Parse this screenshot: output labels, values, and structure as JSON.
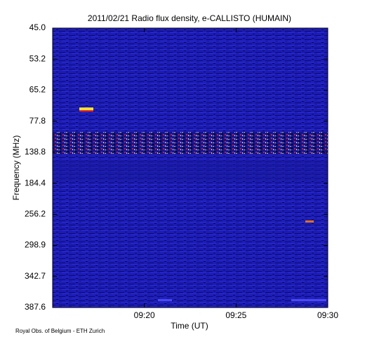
{
  "chart_data": {
    "type": "spectrogram",
    "title": "2011/02/21  Radio flux density, e-CALLISTO (HUMAIN)",
    "x_label": "Time (UT)",
    "y_label": "Frequency (MHz)",
    "footer": "Royal Obs. of Belgium - ETH Zurich",
    "xlim": [
      "09:15",
      "09:30"
    ],
    "xticks": [
      "09:20",
      "09:25",
      "09:30"
    ],
    "yticks": [
      "45.0",
      "53.2",
      "65.2",
      "77.8",
      "138.8",
      "184.4",
      "256.2",
      "298.9",
      "342.7",
      "387.6"
    ]
  }
}
